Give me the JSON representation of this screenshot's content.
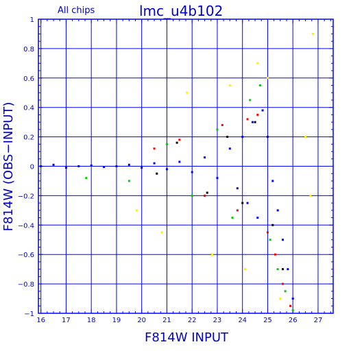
{
  "chart_data": {
    "type": "scatter",
    "title": "lmc_u4b102",
    "subtitle": "All chips",
    "xlabel": "F814W INPUT",
    "ylabel": "F814W (OBS−INPUT)",
    "xlim": [
      15.9,
      27.6
    ],
    "ylim": [
      -1,
      1
    ],
    "x_ticks": [
      "16",
      "17",
      "18",
      "19",
      "20",
      "21",
      "22",
      "23",
      "24",
      "25",
      "26",
      "27"
    ],
    "y_ticks": [
      "−1",
      "−0.8",
      "−0.6",
      "−0.4",
      "−0.2",
      "0",
      "0.2",
      "0.4",
      "0.6",
      "0.8",
      "1"
    ],
    "grid": true,
    "series_colors": [
      "#0000ff",
      "#ff0000",
      "#00cc00",
      "#ffee00",
      "#000000"
    ],
    "series": [
      {
        "color": "#0000ff",
        "points": [
          [
            16.0,
            0.0
          ],
          [
            16.5,
            0.01
          ],
          [
            17.0,
            -0.01
          ],
          [
            17.5,
            0.0
          ],
          [
            18.0,
            0.005
          ],
          [
            18.5,
            -0.005
          ],
          [
            19.0,
            0.0
          ],
          [
            19.5,
            0.01
          ],
          [
            20.0,
            -0.01
          ],
          [
            20.5,
            0.02
          ],
          [
            21.0,
            -0.02
          ],
          [
            21.5,
            0.03
          ],
          [
            22.0,
            -0.04
          ],
          [
            22.5,
            0.06
          ],
          [
            23.0,
            -0.08
          ],
          [
            23.5,
            0.12
          ],
          [
            23.8,
            -0.15
          ],
          [
            24.0,
            0.2
          ],
          [
            24.2,
            -0.25
          ],
          [
            24.4,
            0.3
          ],
          [
            24.6,
            -0.35
          ],
          [
            24.8,
            0.38
          ],
          [
            25.0,
            0.2
          ],
          [
            25.2,
            -0.1
          ],
          [
            25.4,
            -0.3
          ],
          [
            25.6,
            -0.5
          ],
          [
            25.8,
            -0.7
          ],
          [
            26.0,
            -0.9
          ]
        ]
      },
      {
        "color": "#ff0000",
        "points": [
          [
            20.5,
            0.12
          ],
          [
            21.5,
            0.18
          ],
          [
            22.5,
            -0.2
          ],
          [
            23.2,
            0.28
          ],
          [
            23.8,
            -0.3
          ],
          [
            24.2,
            0.32
          ],
          [
            24.6,
            0.35
          ],
          [
            25.0,
            -0.45
          ],
          [
            25.3,
            -0.6
          ],
          [
            25.6,
            -0.8
          ],
          [
            25.9,
            -0.95
          ]
        ]
      },
      {
        "color": "#00cc00",
        "points": [
          [
            17.8,
            -0.08
          ],
          [
            19.5,
            -0.1
          ],
          [
            21.0,
            0.15
          ],
          [
            22.0,
            -0.2
          ],
          [
            23.0,
            0.25
          ],
          [
            23.6,
            -0.35
          ],
          [
            24.3,
            0.45
          ],
          [
            24.7,
            0.55
          ],
          [
            25.1,
            -0.5
          ],
          [
            25.4,
            -0.7
          ],
          [
            25.7,
            -0.85
          ],
          [
            26.0,
            -0.98
          ]
        ]
      },
      {
        "color": "#ffee00",
        "points": [
          [
            19.8,
            -0.3
          ],
          [
            20.8,
            -0.45
          ],
          [
            21.8,
            0.5
          ],
          [
            22.8,
            -0.6
          ],
          [
            23.5,
            0.55
          ],
          [
            24.1,
            -0.7
          ],
          [
            24.6,
            0.7
          ],
          [
            25.0,
            0.6
          ],
          [
            25.5,
            -0.9
          ],
          [
            26.5,
            0.2
          ],
          [
            26.7,
            -0.2
          ],
          [
            26.8,
            0.9
          ]
        ]
      },
      {
        "color": "#000000",
        "points": [
          [
            20.6,
            -0.05
          ],
          [
            21.4,
            0.16
          ],
          [
            22.6,
            -0.18
          ],
          [
            23.4,
            0.2
          ],
          [
            24.0,
            -0.25
          ],
          [
            24.5,
            0.3
          ],
          [
            25.2,
            -0.4
          ],
          [
            25.6,
            -0.7
          ]
        ]
      }
    ]
  }
}
